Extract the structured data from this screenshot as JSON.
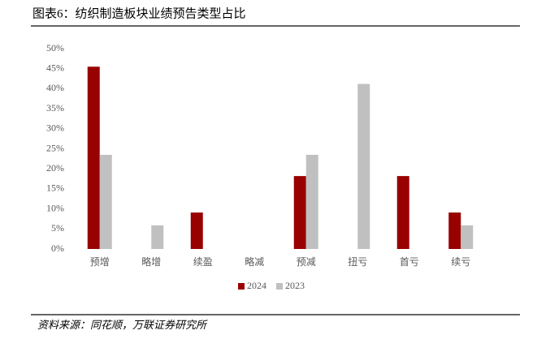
{
  "chart_data": {
    "type": "bar",
    "title": "图表6：纺织制造板块业绩预告类型占比",
    "source": "资料来源：同花顺，万联证券研究所",
    "categories": [
      "预增",
      "略增",
      "续盈",
      "略减",
      "预减",
      "扭亏",
      "首亏",
      "续亏"
    ],
    "series": [
      {
        "name": "2024",
        "color": "#990000",
        "values": [
          45.5,
          0,
          9.1,
          0,
          18.2,
          0,
          18.2,
          9.1
        ]
      },
      {
        "name": "2023",
        "color": "#c0c0c0",
        "values": [
          23.5,
          5.9,
          0,
          0,
          23.5,
          41.2,
          0,
          5.9
        ]
      }
    ],
    "ylim": [
      0,
      50
    ],
    "yticks": [
      {
        "value": 0,
        "label": "0%"
      },
      {
        "value": 5,
        "label": "5%"
      },
      {
        "value": 10,
        "label": "10%"
      },
      {
        "value": 15,
        "label": "15%"
      },
      {
        "value": 20,
        "label": "20%"
      },
      {
        "value": 25,
        "label": "25%"
      },
      {
        "value": 30,
        "label": "30%"
      },
      {
        "value": 35,
        "label": "35%"
      },
      {
        "value": 40,
        "label": "40%"
      },
      {
        "value": 45,
        "label": "45%"
      },
      {
        "value": 50,
        "label": "50%"
      }
    ],
    "grid": false,
    "legend": "bottom"
  }
}
